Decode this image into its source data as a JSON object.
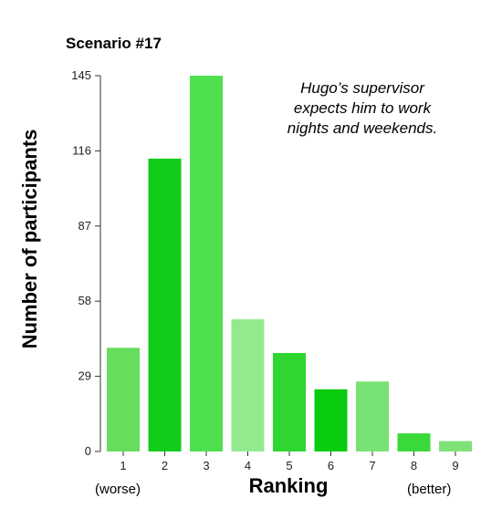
{
  "chart_data": {
    "type": "bar",
    "title": "Scenario #17",
    "xlabel": "Ranking",
    "ylabel": "Number of participants",
    "categories": [
      "1",
      "2",
      "3",
      "4",
      "5",
      "6",
      "7",
      "8",
      "9"
    ],
    "values": [
      40,
      113,
      145,
      51,
      38,
      24,
      27,
      7,
      4
    ],
    "yticks": [
      0,
      29,
      58,
      87,
      116,
      145
    ],
    "ylim": [
      0,
      145
    ],
    "x_end_labels": {
      "left": "(worse)",
      "right": "(better)"
    },
    "annotation": [
      "Hugo’s supervisor",
      "expects him to work",
      "nights and weekends."
    ],
    "bar_colors": [
      "#66dd5c",
      "#12cc1c",
      "#4ee04e",
      "#93ea8e",
      "#2ed62f",
      "#09cc11",
      "#79e274",
      "#3ad93a",
      "#7fe277"
    ],
    "grid": false,
    "legend": "none"
  }
}
